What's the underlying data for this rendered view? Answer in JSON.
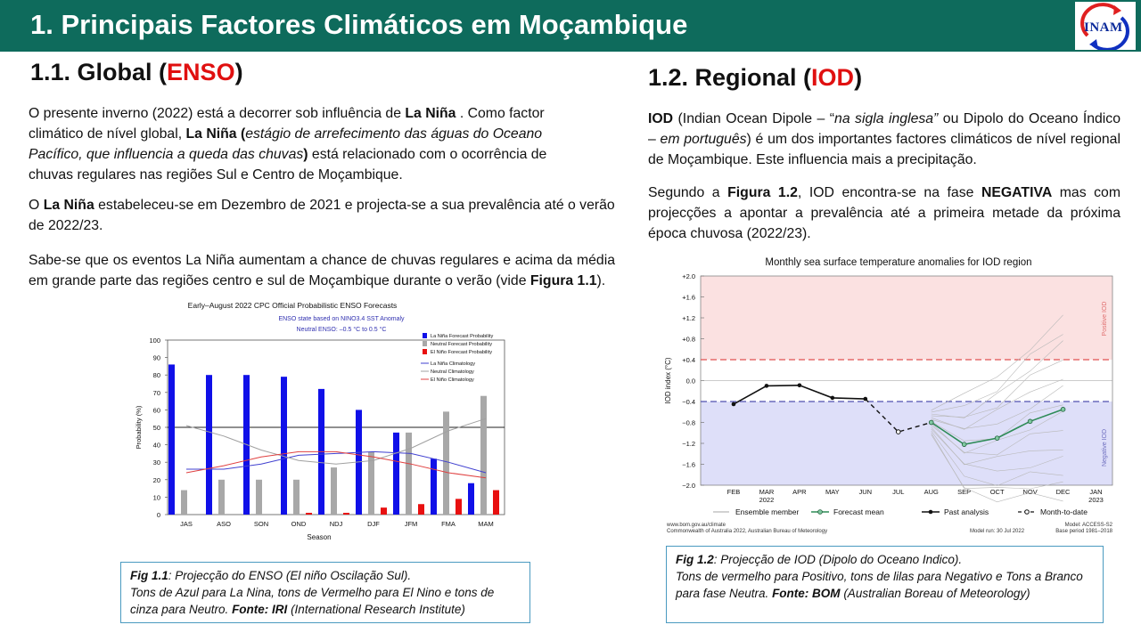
{
  "header": {
    "title": "1. Principais Factores Climáticos em Moçambique",
    "logo_text": "INAM"
  },
  "left": {
    "heading_prefix": "1.1.  Global (",
    "heading_highlight": "ENSO",
    "heading_suffix": ")",
    "p1": {
      "a": "O presente inverno (2022) está a decorrer sob influência de ",
      "b": "La Niña",
      "c": " . Como factor climático de nível global, ",
      "d": "La Niña (",
      "e": "estágio de arrefecimento das águas do Oceano Pacífico, que influencia a queda das chuvas",
      "f": ")",
      "g": " está relacionado com o ocorrência de chuvas regulares nas regiões Sul e Centro de Moçambique."
    },
    "p2": {
      "a": " O ",
      "b": "La Niña",
      "c": "  estabeleceu-se em Dezembro de 2021 e projecta-se a sua prevalência até o verão de 2022/23."
    },
    "p3": {
      "a": "Sabe-se que os eventos La Niña aumentam a chance de chuvas regulares e acima da média em grande parte das regiões centro e sul de Moçambique durante o verão (vide ",
      "b": "Figura 1.1",
      "c": ")."
    },
    "caption": {
      "label": "Fig 1.1",
      "l1": ": Projecção do ENSO (El niño Oscilação Sul).",
      "l2": "Tons de Azul para La Nina, tons de Vermelho para El Nino e tons de cinza para Neutro. ",
      "src_label": "Fonte: IRI",
      "src_text": " (International Research Institute)"
    }
  },
  "right": {
    "heading_prefix": "1.2. Regional (",
    "heading_highlight": "IOD",
    "heading_suffix": ")",
    "p1": {
      "a": "IOD",
      "b": " (Indian Ocean Dipole – “",
      "c": "na sigla inglesa”",
      "d": " ou Dipolo do Oceano Índico – ",
      "e": "em português",
      "f": ") é um dos importantes factores climáticos de nível regional de Moçambique. Este influencia mais a precipitação."
    },
    "p2": {
      "a": "Segundo a ",
      "b": "Figura 1.2",
      "c": ", IOD encontra-se na fase ",
      "d": "NEGATIVA",
      "e": " mas com projecções a apontar a prevalência até a primeira metade da próxima época chuvosa (2022/23)."
    },
    "caption": {
      "label": "Fig 1.2",
      "l1": ": Projecção de IOD (Dipolo do Oceano Indico).",
      "l2": "Tons de vermelho para Positivo, tons de lilas para Negativo e Tons a Branco para fase Neutra. ",
      "src_label": "Fonte: BOM",
      "src_text": " (Australian Boreau of Meteorology)"
    }
  },
  "chart_data": [
    {
      "type": "bar",
      "title": "Early–August 2022 CPC Official Probabilistic ENSO Forecasts",
      "subtitle": "ENSO state based on NINO3.4 SST Anomaly",
      "subtitle2": "Neutral ENSO: –0.5 °C to 0.5 °C",
      "xlabel": "Season",
      "ylabel": "Probability (%)",
      "ylim": [
        0,
        100
      ],
      "yticks": [
        0,
        10,
        20,
        30,
        40,
        50,
        60,
        70,
        80,
        90,
        100
      ],
      "categories": [
        "JAS",
        "ASO",
        "SON",
        "OND",
        "NDJ",
        "DJF",
        "JFM",
        "FMA",
        "MAM"
      ],
      "series": [
        {
          "name": "La Niña Forecast Probability",
          "color": "#1010e8",
          "values": [
            86,
            80,
            80,
            79,
            72,
            60,
            47,
            32,
            18
          ]
        },
        {
          "name": "Neutral Forecast Probability",
          "color": "#a8a8a8",
          "values": [
            14,
            20,
            20,
            20,
            27,
            36,
            47,
            59,
            68
          ]
        },
        {
          "name": "El Niño Forecast Probability",
          "color": "#e81010",
          "values": [
            0,
            0,
            0,
            1,
            1,
            4,
            6,
            9,
            14
          ]
        }
      ],
      "climatology": [
        {
          "name": "La Niña Climatology",
          "color": "#4040d0",
          "values": [
            26,
            26,
            29,
            34,
            35,
            36,
            35,
            30,
            24
          ]
        },
        {
          "name": "Neutral Climatology",
          "color": "#a0a0a0",
          "values": [
            51,
            45,
            37,
            31,
            29,
            31,
            38,
            48,
            55
          ]
        },
        {
          "name": "El Niño Climatology",
          "color": "#e04040",
          "values": [
            24,
            28,
            33,
            36,
            36,
            33,
            29,
            24,
            21
          ]
        }
      ],
      "reference_line": 50
    },
    {
      "type": "line",
      "title": "Monthly sea surface temperature anomalies for IOD region",
      "ylabel": "IOD index (°C)",
      "ylim": [
        -2.0,
        2.0
      ],
      "yticks": [
        "+2.0",
        "+1.6",
        "+1.2",
        "+0.8",
        "+0.4",
        "0.0",
        "−0.4",
        "−0.8",
        "−1.2",
        "−1.6",
        "−2.0"
      ],
      "x": [
        "FEB",
        "MAR",
        "APR",
        "MAY",
        "JUN",
        "JUL",
        "AUG",
        "SEP",
        "OCT",
        "NOV",
        "DEC",
        "JAN"
      ],
      "x_sub": [
        "",
        "2022",
        "",
        "",
        "",
        "",
        "",
        "",
        "",
        "",
        "",
        "2023"
      ],
      "thresholds": [
        0.4,
        -0.4
      ],
      "regions": {
        "positive": "Positive IOD",
        "negative": "Negative IOD"
      },
      "past_analysis": [
        -0.45,
        -0.1,
        -0.09,
        -0.33,
        -0.35
      ],
      "month_to_date": [
        -0.35,
        -0.98,
        -0.8
      ],
      "forecast_mean": [
        -0.8,
        -1.22,
        -1.1,
        -0.78,
        -0.55
      ],
      "legend": [
        "Ensemble member",
        "Forecast mean",
        "Past analysis",
        "Month-to-date"
      ],
      "footer_left1": "www.bom.gov.au/climate",
      "footer_left2": "Commonwealth of Australia 2022, Australian Bureau of Meteorology",
      "footer_mid": "Model run: 30 Jul 2022",
      "footer_right1": "Model: ACCESS-S2",
      "footer_right2": "Base period 1981–2018"
    }
  ]
}
